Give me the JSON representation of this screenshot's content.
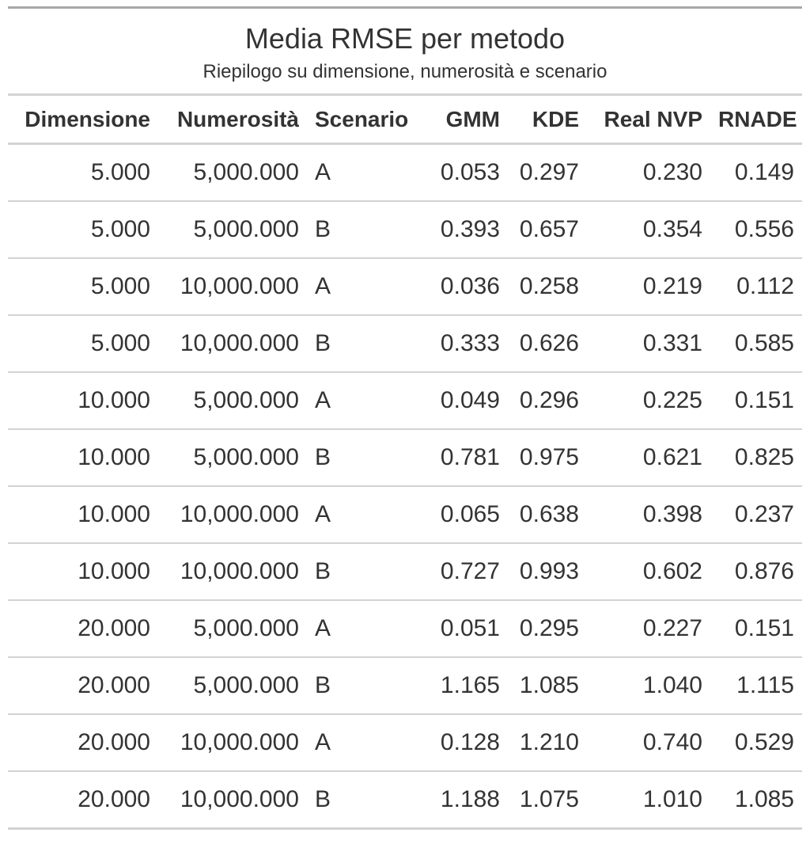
{
  "table": {
    "title": "Media RMSE per metodo",
    "subtitle": "Riepilogo su dimensione, numerosità e scenario",
    "columns": [
      "Dimensione",
      "Numerosità",
      "Scenario",
      "GMM",
      "KDE",
      "Real NVP",
      "RNADE"
    ],
    "rows": [
      [
        "5.000",
        "5,000.000",
        "A",
        "0.053",
        "0.297",
        "0.230",
        "0.149"
      ],
      [
        "5.000",
        "5,000.000",
        "B",
        "0.393",
        "0.657",
        "0.354",
        "0.556"
      ],
      [
        "5.000",
        "10,000.000",
        "A",
        "0.036",
        "0.258",
        "0.219",
        "0.112"
      ],
      [
        "5.000",
        "10,000.000",
        "B",
        "0.333",
        "0.626",
        "0.331",
        "0.585"
      ],
      [
        "10.000",
        "5,000.000",
        "A",
        "0.049",
        "0.296",
        "0.225",
        "0.151"
      ],
      [
        "10.000",
        "5,000.000",
        "B",
        "0.781",
        "0.975",
        "0.621",
        "0.825"
      ],
      [
        "10.000",
        "10,000.000",
        "A",
        "0.065",
        "0.638",
        "0.398",
        "0.237"
      ],
      [
        "10.000",
        "10,000.000",
        "B",
        "0.727",
        "0.993",
        "0.602",
        "0.876"
      ],
      [
        "20.000",
        "5,000.000",
        "A",
        "0.051",
        "0.295",
        "0.227",
        "0.151"
      ],
      [
        "20.000",
        "5,000.000",
        "B",
        "1.165",
        "1.085",
        "1.040",
        "1.115"
      ],
      [
        "20.000",
        "10,000.000",
        "A",
        "0.128",
        "1.210",
        "0.740",
        "0.529"
      ],
      [
        "20.000",
        "10,000.000",
        "B",
        "1.188",
        "1.075",
        "1.010",
        "1.085"
      ]
    ]
  }
}
